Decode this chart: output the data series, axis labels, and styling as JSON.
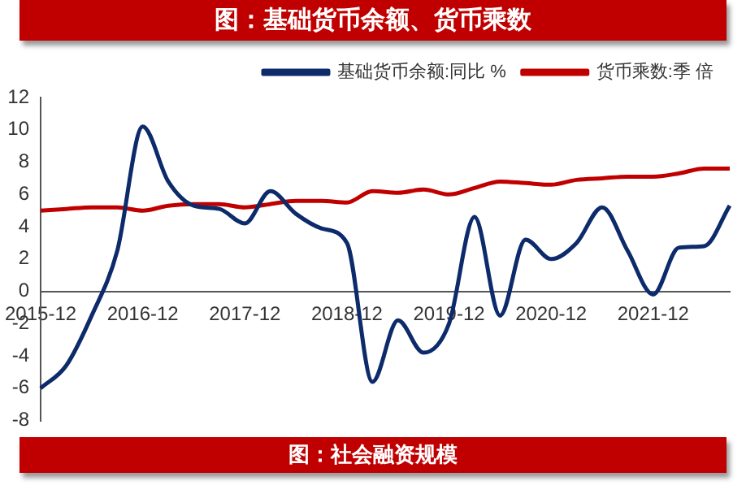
{
  "chart_data": {
    "type": "line",
    "title": "图：基础货币余额、货币乘数",
    "annotations": [
      "图：社会融资规模"
    ],
    "categories": [
      "2015-12",
      null,
      null,
      null,
      "2016-12",
      null,
      null,
      null,
      "2017-12",
      null,
      null,
      null,
      "2018-12",
      null,
      null,
      null,
      "2019-12",
      null,
      null,
      null,
      "2020-12",
      null,
      null,
      null,
      "2021-12",
      null,
      null,
      null
    ],
    "series": [
      {
        "name": "基础货币余额:同比 %",
        "color": "#0d2a6b",
        "values": [
          -6.0,
          -4.6,
          -1.5,
          2.5,
          10.2,
          6.8,
          5.3,
          5.1,
          4.2,
          6.2,
          4.8,
          3.9,
          3.0,
          -5.6,
          -1.8,
          -3.8,
          -2.0,
          4.6,
          -1.5,
          3.2,
          2.0,
          3.0,
          5.2,
          2.5,
          -0.2,
          2.7,
          2.8,
          5.3
        ]
      },
      {
        "name": "货币乘数:季 倍",
        "color": "#c00000",
        "values": [
          5.0,
          5.1,
          5.2,
          5.2,
          5.0,
          5.3,
          5.4,
          5.4,
          5.2,
          5.4,
          5.6,
          5.6,
          5.5,
          6.2,
          6.1,
          6.3,
          6.0,
          6.4,
          6.8,
          6.7,
          6.6,
          6.9,
          7.0,
          7.1,
          7.1,
          7.3,
          7.6,
          7.6
        ]
      }
    ],
    "ylim": [
      -8,
      12
    ],
    "yticks": [
      -8,
      -6,
      -4,
      -2,
      0,
      2,
      4,
      6,
      8,
      10,
      12
    ],
    "grid": false,
    "legend": "top",
    "marker": "none",
    "line_style": "solid"
  }
}
